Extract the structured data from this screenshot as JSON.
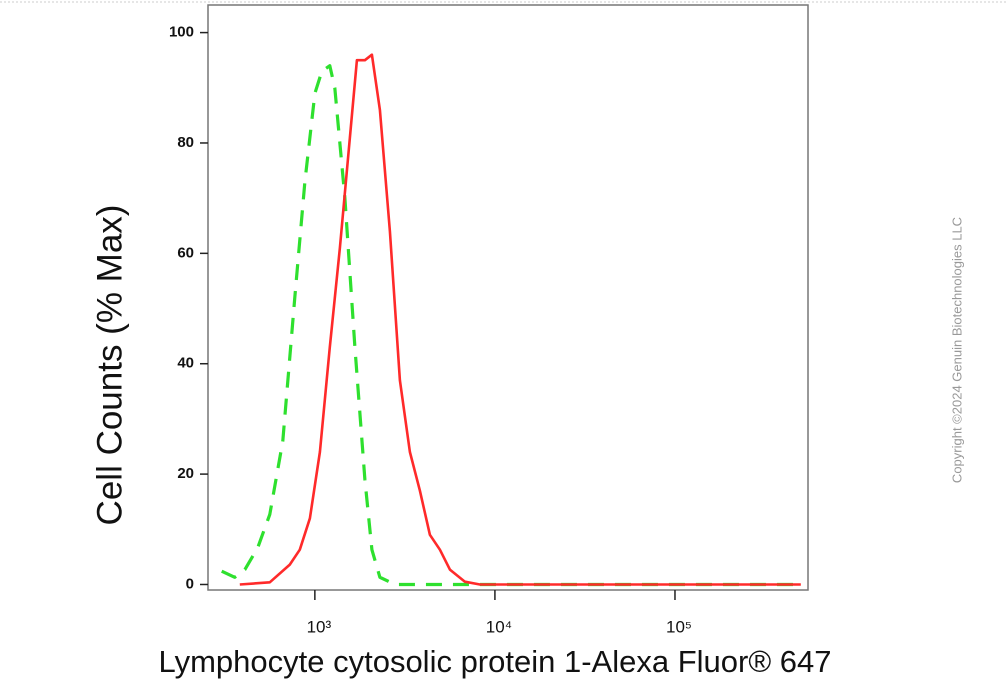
{
  "chart_data": {
    "type": "line",
    "y_label": "Cell Counts (% Max)",
    "x_label": "Lymphocyte cytosolic protein 1-Alexa Fluor® 647",
    "watermark": "Copyright ©2024 Genuin Biotechnologies LLC",
    "x_log": true,
    "xlim": [
      255,
      548000
    ],
    "ylim": [
      -1,
      105
    ],
    "xticks": [
      {
        "value": 1000,
        "label": "10³"
      },
      {
        "value": 10000,
        "label": "10⁴"
      },
      {
        "value": 100000,
        "label": "10⁵"
      }
    ],
    "yticks": [
      0,
      20,
      40,
      60,
      80,
      100
    ],
    "series": [
      {
        "color": "#2ee02e",
        "dashed": true,
        "x": [
          304,
          359,
          409,
          482,
          562,
          664,
          774,
          880,
          1000,
          1094,
          1211,
          1291,
          1468,
          1668,
          1896,
          2074,
          2296,
          2783,
          3831,
          500000
        ],
        "values": [
          2.4,
          1.3,
          2.7,
          6.7,
          12.7,
          26,
          52,
          73,
          89,
          93,
          94,
          90,
          70,
          43,
          19,
          6.3,
          1.3,
          0,
          0,
          0
        ]
      },
      {
        "color": "#ff2a2a",
        "dashed": false,
        "x": [
          383,
          562,
          726,
          825,
          938,
          1066,
          1211,
          1377,
          1565,
          1711,
          1896,
          2074,
          2296,
          2610,
          2966,
          3373,
          3831,
          4355,
          4946,
          5623,
          6813,
          8254,
          500000
        ],
        "values": [
          0,
          0.4,
          3.6,
          6.3,
          12,
          24,
          43,
          61,
          81,
          95,
          95,
          96,
          86,
          64,
          37,
          24,
          17,
          9,
          6.3,
          2.7,
          0.5,
          0,
          0
        ]
      }
    ]
  }
}
